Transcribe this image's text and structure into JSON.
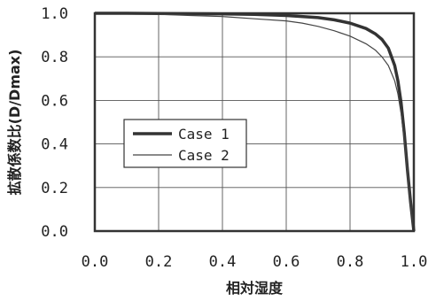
{
  "chart_data": {
    "type": "line",
    "xlabel": "相対湿度",
    "ylabel": "拡散係数比(D/Dmax)",
    "xlim": [
      0.0,
      1.0
    ],
    "ylim": [
      0.0,
      1.0
    ],
    "x_ticks": [
      "0.0",
      "0.2",
      "0.4",
      "0.6",
      "0.8",
      "1.0"
    ],
    "y_ticks": [
      "0.0",
      "0.2",
      "0.4",
      "0.6",
      "0.8",
      "1.0"
    ],
    "grid": true,
    "legend_position": "center-left",
    "series": [
      {
        "name": "Case 1",
        "style": "thick",
        "color": "#333333",
        "x": [
          0.0,
          0.1,
          0.2,
          0.3,
          0.4,
          0.5,
          0.6,
          0.7,
          0.75,
          0.8,
          0.85,
          0.88,
          0.9,
          0.92,
          0.94,
          0.95,
          0.96,
          0.97,
          0.98,
          0.99,
          1.0
        ],
        "y": [
          1.0,
          1.0,
          0.999,
          0.998,
          0.997,
          0.995,
          0.99,
          0.98,
          0.97,
          0.955,
          0.93,
          0.905,
          0.88,
          0.84,
          0.76,
          0.69,
          0.59,
          0.45,
          0.28,
          0.13,
          0.0
        ]
      },
      {
        "name": "Case 2",
        "style": "thin",
        "color": "#444444",
        "x": [
          0.0,
          0.1,
          0.2,
          0.3,
          0.4,
          0.5,
          0.6,
          0.65,
          0.7,
          0.75,
          0.8,
          0.85,
          0.88,
          0.9,
          0.92,
          0.94,
          0.95,
          0.96,
          0.97,
          0.98,
          0.99,
          1.0
        ],
        "y": [
          1.0,
          0.998,
          0.995,
          0.99,
          0.985,
          0.975,
          0.965,
          0.955,
          0.94,
          0.92,
          0.895,
          0.86,
          0.83,
          0.8,
          0.76,
          0.69,
          0.63,
          0.54,
          0.42,
          0.27,
          0.12,
          0.0
        ]
      }
    ]
  }
}
